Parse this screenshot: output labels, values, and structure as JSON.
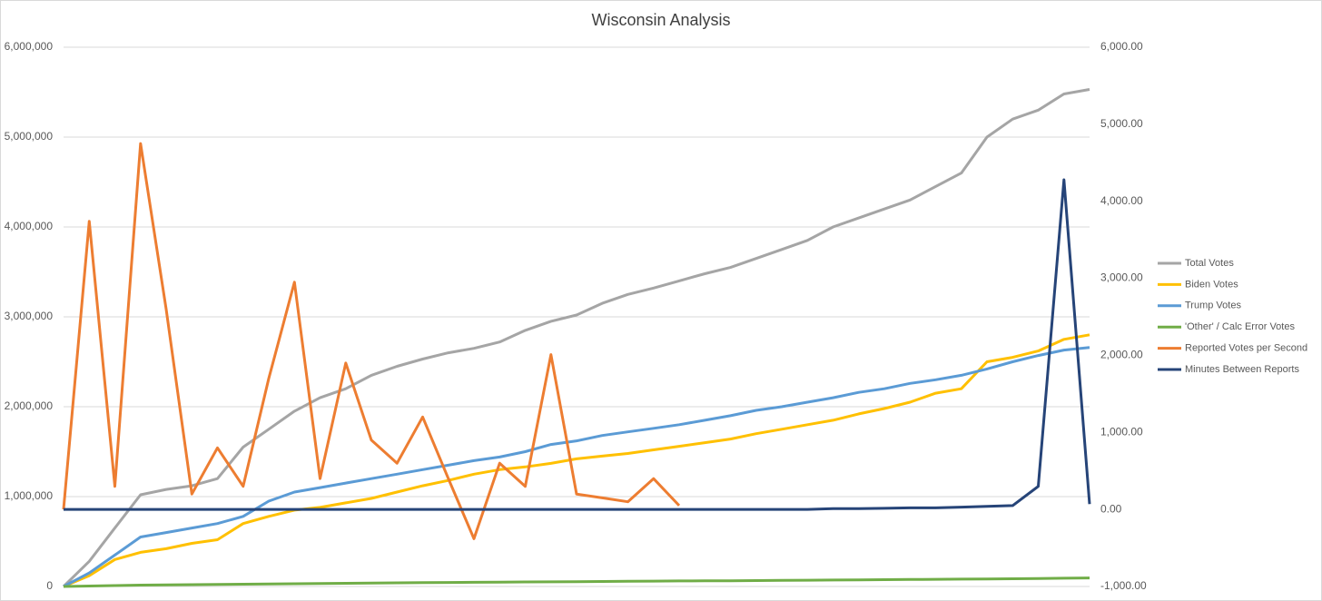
{
  "chart_data": {
    "type": "line",
    "title": "Wisconsin Analysis",
    "ylim": [
      0,
      6000000
    ],
    "yticks": [
      0,
      {
        "value": 1000000,
        "label": "1,000,000"
      },
      {
        "value": 2000000,
        "label": "2,000,000"
      },
      {
        "value": 3000000,
        "label": "3,000,000"
      },
      {
        "value": 4000000,
        "label": "4,000,000"
      },
      {
        "value": 5000000,
        "label": "5,000,000"
      },
      {
        "value": 6000000,
        "label": "6,000,000"
      }
    ],
    "y2lim": [
      -1000,
      6000
    ],
    "y2ticks": [
      {
        "value": -1000,
        "label": "-1,000.00"
      },
      {
        "value": 0,
        "label": "0.00"
      },
      {
        "value": 1000,
        "label": "1,000.00"
      },
      {
        "value": 2000,
        "label": "2,000.00"
      },
      {
        "value": 3000,
        "label": "3,000.00"
      },
      {
        "value": 4000,
        "label": "4,000.00"
      },
      {
        "value": 5000,
        "label": "5,000.00"
      },
      {
        "value": 6000,
        "label": "6,000.00"
      }
    ],
    "grid": true,
    "legend": "right",
    "series": [
      {
        "name": "Total Votes",
        "color": "#a5a5a5",
        "values": [
          0,
          280000,
          650000,
          1020000,
          1080000,
          1120000,
          1200000,
          1550000,
          1750000,
          1950000,
          2100000,
          2200000,
          2350000,
          2450000,
          2530000,
          2600000,
          2650000,
          2720000,
          2850000,
          2950000,
          3020000,
          3150000,
          3250000,
          3320000,
          3400000,
          3480000,
          3550000,
          3650000,
          3750000,
          3850000,
          4000000,
          4100000,
          4200000,
          4300000,
          4450000,
          4600000,
          5000000,
          5200000,
          5300000,
          5480000,
          5530000
        ]
      },
      {
        "name": "Biden Votes",
        "color": "#ffc000",
        "values": [
          0,
          120000,
          300000,
          380000,
          420000,
          480000,
          520000,
          700000,
          780000,
          850000,
          880000,
          930000,
          980000,
          1050000,
          1120000,
          1180000,
          1250000,
          1300000,
          1330000,
          1370000,
          1420000,
          1450000,
          1480000,
          1520000,
          1560000,
          1600000,
          1640000,
          1700000,
          1750000,
          1800000,
          1850000,
          1920000,
          1980000,
          2050000,
          2150000,
          2200000,
          2500000,
          2550000,
          2620000,
          2750000,
          2800000
        ]
      },
      {
        "name": "Trump Votes",
        "color": "#5b9bd5",
        "values": [
          0,
          150000,
          350000,
          550000,
          600000,
          650000,
          700000,
          780000,
          950000,
          1050000,
          1100000,
          1150000,
          1200000,
          1250000,
          1300000,
          1350000,
          1400000,
          1440000,
          1500000,
          1580000,
          1620000,
          1680000,
          1720000,
          1760000,
          1800000,
          1850000,
          1900000,
          1960000,
          2000000,
          2050000,
          2100000,
          2160000,
          2200000,
          2260000,
          2300000,
          2350000,
          2420000,
          2500000,
          2570000,
          2630000,
          2660000
        ]
      },
      {
        "name": "'Other' / Calc Error Votes",
        "color": "#70ad47",
        "values": [
          0,
          5000,
          10000,
          15000,
          18000,
          20000,
          22000,
          25000,
          28000,
          30000,
          32000,
          35000,
          37000,
          40000,
          42000,
          44000,
          46000,
          48000,
          50000,
          52000,
          54000,
          56000,
          58000,
          60000,
          62000,
          63000,
          64000,
          66000,
          68000,
          70000,
          72000,
          74000,
          76000,
          78000,
          80000,
          82000,
          84000,
          86000,
          88000,
          92000,
          95000
        ]
      },
      {
        "name": "Reported Votes per Second",
        "color": "#ed7d31",
        "axis": "y2",
        "values": [
          0,
          3740,
          300,
          4750,
          2600,
          200,
          800,
          300,
          1700,
          2950,
          400,
          1900,
          900,
          600,
          1200,
          400,
          -380,
          600,
          300,
          2010,
          200,
          150,
          100,
          400,
          50,
          null,
          null,
          null,
          null,
          null,
          null,
          null,
          null,
          null,
          null,
          null,
          null,
          null,
          null,
          null,
          null
        ]
      },
      {
        "name": "Minutes Between Reports",
        "color": "#264478",
        "axis": "y2",
        "values": [
          0,
          0,
          0,
          0,
          0,
          0,
          0,
          0,
          0,
          0,
          0,
          0,
          0,
          0,
          0,
          0,
          0,
          0,
          0,
          0,
          0,
          0,
          0,
          0,
          0,
          0,
          0,
          0,
          0,
          0,
          10,
          10,
          15,
          20,
          20,
          30,
          40,
          50,
          300,
          4280,
          70
        ]
      }
    ]
  }
}
